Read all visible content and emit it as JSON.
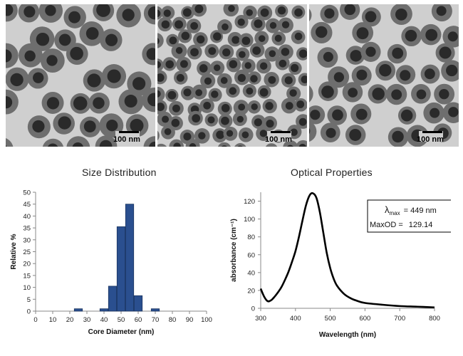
{
  "micrographs": [
    {
      "scale_label": "100 nm"
    },
    {
      "scale_label": "100 nm"
    },
    {
      "scale_label": "100 nm"
    }
  ],
  "section_titles": {
    "size": "Size Distribution",
    "optical": "Optical Properties"
  },
  "chart_data": [
    {
      "type": "bar",
      "xlabel": "Core Diameter (nm)",
      "ylabel": "Relative %",
      "xlim": [
        0,
        100
      ],
      "ylim": [
        0,
        50
      ],
      "xticks": [
        0,
        10,
        20,
        30,
        40,
        50,
        60,
        70,
        80,
        90,
        100
      ],
      "yticks": [
        0,
        5,
        10,
        15,
        20,
        25,
        30,
        35,
        40,
        45,
        50
      ],
      "x": [
        25,
        40,
        45,
        50,
        55,
        60,
        70
      ],
      "values": [
        1,
        1,
        10.5,
        35.5,
        45,
        6.5,
        1
      ],
      "color": "#2a4f8f",
      "grid": false
    },
    {
      "type": "line",
      "xlabel": "Wavelength (nm)",
      "ylabel": "absorbance (cm⁻¹)",
      "xlim": [
        300,
        800
      ],
      "ylim": [
        0,
        130
      ],
      "xticks": [
        300,
        400,
        500,
        600,
        700,
        800
      ],
      "yticks": [
        0,
        20,
        40,
        60,
        80,
        100,
        120
      ],
      "x": [
        300,
        310,
        320,
        330,
        340,
        350,
        360,
        370,
        380,
        390,
        400,
        410,
        420,
        430,
        440,
        449,
        460,
        470,
        480,
        490,
        500,
        510,
        520,
        540,
        560,
        580,
        600,
        650,
        700,
        750,
        800
      ],
      "y": [
        22,
        13,
        8,
        9,
        13,
        18,
        24,
        32,
        41,
        52,
        64,
        80,
        98,
        115,
        126,
        129,
        124,
        108,
        85,
        62,
        45,
        33,
        25,
        16,
        11,
        8,
        6,
        4,
        2.5,
        1.8,
        1
      ],
      "color": "#000000",
      "grid": false,
      "annotation": {
        "lambda_symbol": "λ",
        "lambda_sub": "max",
        "lambda_value": "= 449 nm",
        "maxod_label": "MaxOD =",
        "maxod_value": "129.14"
      }
    }
  ]
}
